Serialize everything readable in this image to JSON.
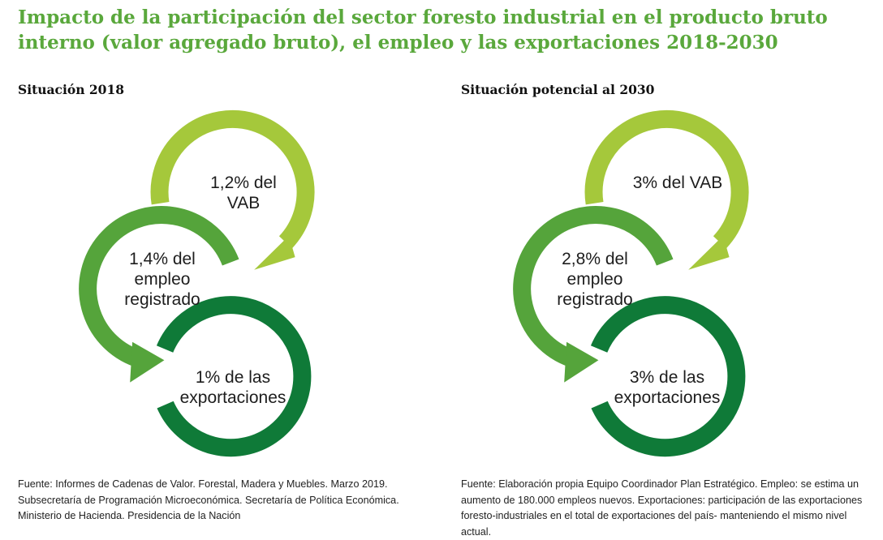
{
  "title": "Impacto de la participación del sector foresto industrial en el producto bruto interno (valor agregado bruto), el empleo y las exportaciones 2018-2030",
  "colors": {
    "title": "#5aa83c",
    "vab": "#a5c83b",
    "empleo": "#55a43b",
    "exportaciones": "#0f7a38"
  },
  "panels": [
    {
      "heading": "Situación 2018",
      "vab": {
        "line1": "1,2% del",
        "line2": "VAB"
      },
      "empleo": {
        "line1": "1,4% del",
        "line2": "empleo",
        "line3": "registrado"
      },
      "exportaciones": {
        "line1": "1% de las",
        "line2": "exportaciones"
      },
      "source": "Fuente: Informes de Cadenas de Valor. Forestal, Madera y Muebles. Marzo 2019. Subsecretaría de Programación Microeconómica. Secretaría de Política Económica. Ministerio de Hacienda. Presidencia de la Nación"
    },
    {
      "heading": "Situación potencial al 2030",
      "vab": {
        "line1": "3% del VAB"
      },
      "empleo": {
        "line1": "2,8% del",
        "line2": "empleo",
        "line3": "registrado"
      },
      "exportaciones": {
        "line1": "3% de las",
        "line2": "exportaciones"
      },
      "source": "Fuente: Elaboración propia Equipo Coordinador Plan Estratégico. Empleo: se estima un aumento de 180.000 empleos nuevos. Exportaciones: participación de las exportaciones foresto-industriales en el total de exportaciones del país- manteniendo el mismo nivel actual."
    }
  ]
}
